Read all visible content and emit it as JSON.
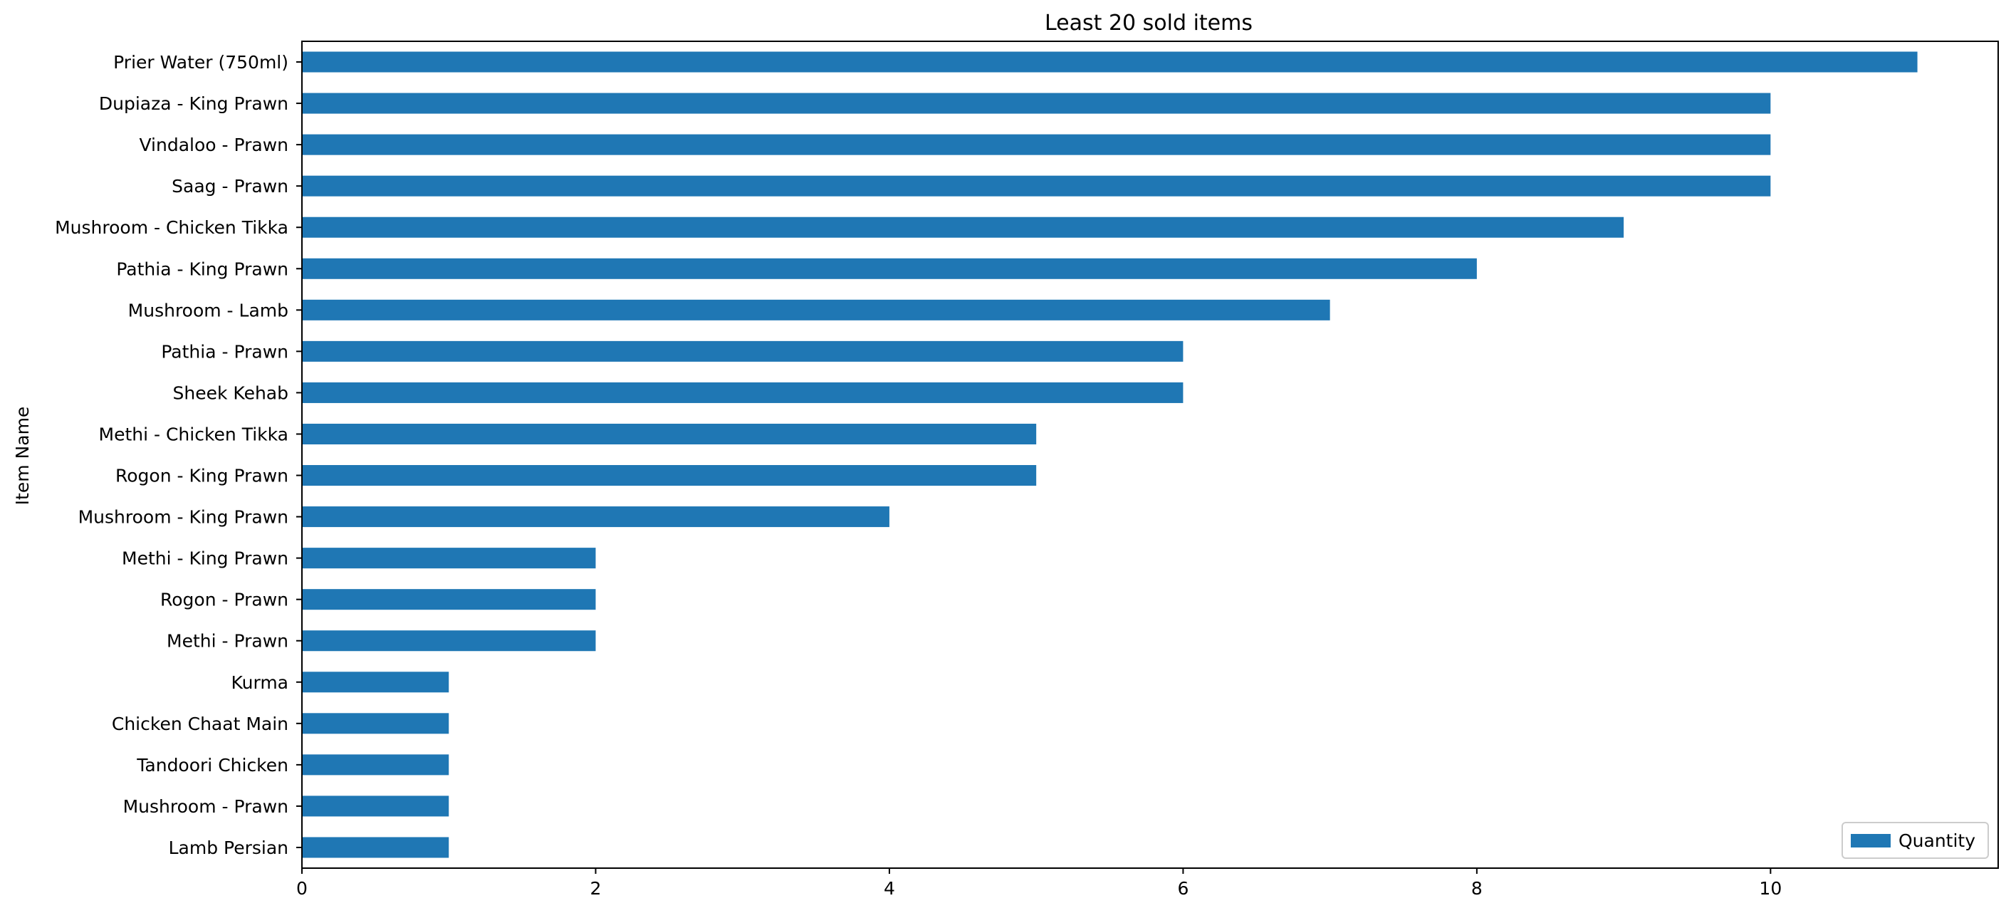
{
  "chart_data": {
    "type": "bar",
    "orientation": "horizontal",
    "title": "Least 20 sold items",
    "xlabel": "",
    "ylabel": "Item Name",
    "xlim": [
      0,
      11.55
    ],
    "xticks": [
      0,
      2,
      4,
      6,
      8,
      10
    ],
    "grid": false,
    "legend_position": "lower-right",
    "categories": [
      "Prier Water (750ml)",
      "Dupiaza - King Prawn",
      "Vindaloo - Prawn",
      "Saag - Prawn",
      "Mushroom - Chicken Tikka",
      "Pathia - King Prawn",
      "Mushroom - Lamb",
      "Pathia - Prawn",
      "Sheek Kehab",
      "Methi - Chicken Tikka",
      "Rogon - King Prawn",
      "Mushroom - King Prawn",
      "Methi - King Prawn",
      "Rogon - Prawn",
      "Methi - Prawn",
      "Kurma",
      "Chicken Chaat Main",
      "Tandoori Chicken",
      "Mushroom - Prawn",
      "Lamb Persian"
    ],
    "series": [
      {
        "name": "Quantity",
        "color": "#1f77b4",
        "values": [
          11,
          10,
          10,
          10,
          9,
          8,
          7,
          6,
          6,
          5,
          5,
          4,
          2,
          2,
          2,
          1,
          1,
          1,
          1,
          1
        ]
      }
    ]
  }
}
